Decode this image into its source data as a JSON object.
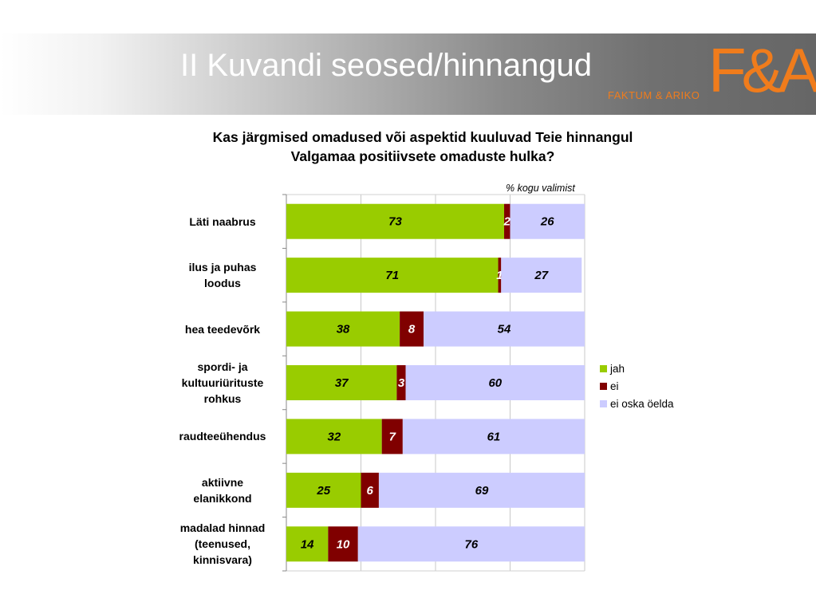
{
  "header": {
    "title": "II Kuvandi seosed/hinnangud",
    "logo_mark": "F&A",
    "logo_sub": "FAKTUM & ARIKO"
  },
  "chart_data": {
    "type": "bar",
    "orientation": "horizontal",
    "stacked": true,
    "title": "Kas järgmised omadused või aspektid kuuluvad Teie hinnangul Valgamaa positiivsete omaduste hulka?",
    "unit_note": "% kogu valimist",
    "categories": [
      "Läti naabrus",
      "ilus ja puhas loodus",
      "hea teedevõrk",
      "spordi- ja kultuuriürituste rohkus",
      "raudteeühendus",
      "aktiivne elanikkond",
      "madalad hinnad (teenused, kinnisvara)"
    ],
    "category_lines": [
      [
        "Läti naabrus"
      ],
      [
        "ilus ja puhas",
        "loodus"
      ],
      [
        "hea teedevõrk"
      ],
      [
        "spordi- ja",
        "kultuuriürituste",
        "rohkus"
      ],
      [
        "raudteeühendus"
      ],
      [
        "aktiivne",
        "elanikkond"
      ],
      [
        "madalad hinnad",
        "(teenused,",
        "kinnisvara)"
      ]
    ],
    "series": [
      {
        "name": "jah",
        "color": "#99cc00",
        "values": [
          73,
          71,
          38,
          37,
          32,
          25,
          14
        ]
      },
      {
        "name": "ei",
        "color": "#800000",
        "values": [
          2,
          1,
          8,
          3,
          7,
          6,
          10
        ]
      },
      {
        "name": "ei oska öelda",
        "color": "#ccccff",
        "values": [
          26,
          27,
          54,
          60,
          61,
          69,
          76
        ]
      }
    ],
    "xlim": [
      0,
      100
    ],
    "grid": true,
    "legend_position": "right"
  }
}
